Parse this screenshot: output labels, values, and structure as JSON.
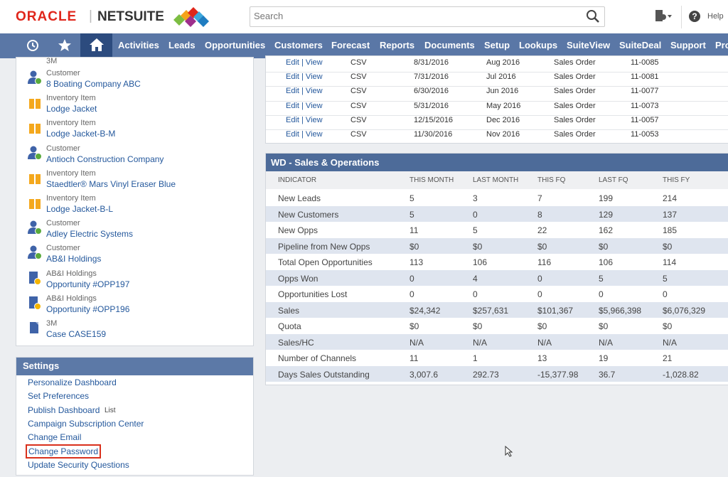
{
  "header": {
    "brand_left": "ORACLE",
    "brand_right": "NETSUITE",
    "search_placeholder": "Search",
    "help": "Help"
  },
  "nav": {
    "items": [
      "Activities",
      "Leads",
      "Opportunities",
      "Customers",
      "Forecast",
      "Reports",
      "Documents",
      "Setup",
      "Lookups",
      "SuiteView",
      "SuiteDeal",
      "Support",
      "Pro"
    ]
  },
  "recent": {
    "cut_item": "3M",
    "items": [
      {
        "type": "Customer",
        "name": "8 Boating Company ABC"
      },
      {
        "type": "Inventory Item",
        "name": "Lodge Jacket"
      },
      {
        "type": "Inventory Item",
        "name": "Lodge Jacket-B-M"
      },
      {
        "type": "Customer",
        "name": "Antioch Construction Company"
      },
      {
        "type": "Inventory Item",
        "name": "Staedtler® Mars Vinyl Eraser Blue"
      },
      {
        "type": "Inventory Item",
        "name": "Lodge Jacket-B-L"
      },
      {
        "type": "Customer",
        "name": "Adley Electric Systems"
      },
      {
        "type": "Customer",
        "name": "AB&I Holdings"
      },
      {
        "type": "AB&I Holdings",
        "name": "Opportunity #OPP197"
      },
      {
        "type": "AB&I Holdings",
        "name": "Opportunity #OPP196"
      },
      {
        "type": "3M",
        "name": "Case CASE159"
      }
    ]
  },
  "orders": {
    "rows": [
      [
        "Edit | View",
        "CSV",
        "8/31/2016",
        "Aug 2016",
        "Sales Order",
        "11-0085"
      ],
      [
        "Edit | View",
        "CSV",
        "7/31/2016",
        "Jul 2016",
        "Sales Order",
        "11-0081"
      ],
      [
        "Edit | View",
        "CSV",
        "6/30/2016",
        "Jun 2016",
        "Sales Order",
        "11-0077"
      ],
      [
        "Edit | View",
        "CSV",
        "5/31/2016",
        "May 2016",
        "Sales Order",
        "11-0073"
      ],
      [
        "Edit | View",
        "CSV",
        "12/15/2016",
        "Dec 2016",
        "Sales Order",
        "11-0057"
      ],
      [
        "Edit | View",
        "CSV",
        "11/30/2016",
        "Nov 2016",
        "Sales Order",
        "11-0053"
      ]
    ]
  },
  "kpi": {
    "title": "WD - Sales & Operations",
    "columns": [
      "INDICATOR",
      "THIS MONTH",
      "LAST MONTH",
      "THIS FQ",
      "LAST FQ",
      "THIS FY"
    ],
    "rows": [
      [
        "New Leads",
        "5",
        "3",
        "7",
        "199",
        "214"
      ],
      [
        "New Customers",
        "5",
        "0",
        "8",
        "129",
        "137"
      ],
      [
        "New Opps",
        "11",
        "5",
        "22",
        "162",
        "185"
      ],
      [
        "Pipeline from New Opps",
        "$0",
        "$0",
        "$0",
        "$0",
        "$0"
      ],
      [
        "Total Open Opportunities",
        "113",
        "106",
        "116",
        "106",
        "114"
      ],
      [
        "Opps Won",
        "0",
        "4",
        "0",
        "5",
        "5"
      ],
      [
        "Opportunities Lost",
        "0",
        "0",
        "0",
        "0",
        "0"
      ],
      [
        "Sales",
        "$24,342",
        "$257,631",
        "$101,367",
        "$5,966,398",
        "$6,076,329"
      ],
      [
        "Quota",
        "$0",
        "$0",
        "$0",
        "$0",
        "$0"
      ],
      [
        "Sales/HC",
        "N/A",
        "N/A",
        "N/A",
        "N/A",
        "N/A"
      ],
      [
        "Number of Channels",
        "11",
        "1",
        "13",
        "19",
        "21"
      ],
      [
        "Days Sales Outstanding",
        "3,007.6",
        "292.73",
        "-15,377.98",
        "36.7",
        "-1,028.82"
      ]
    ]
  },
  "settings": {
    "title": "Settings",
    "links": [
      "Personalize Dashboard",
      "Set Preferences",
      "Publish Dashboard",
      "Campaign Subscription Center",
      "Change Email",
      "Change Password",
      "Update Security Questions"
    ],
    "publish_extra": "List"
  }
}
